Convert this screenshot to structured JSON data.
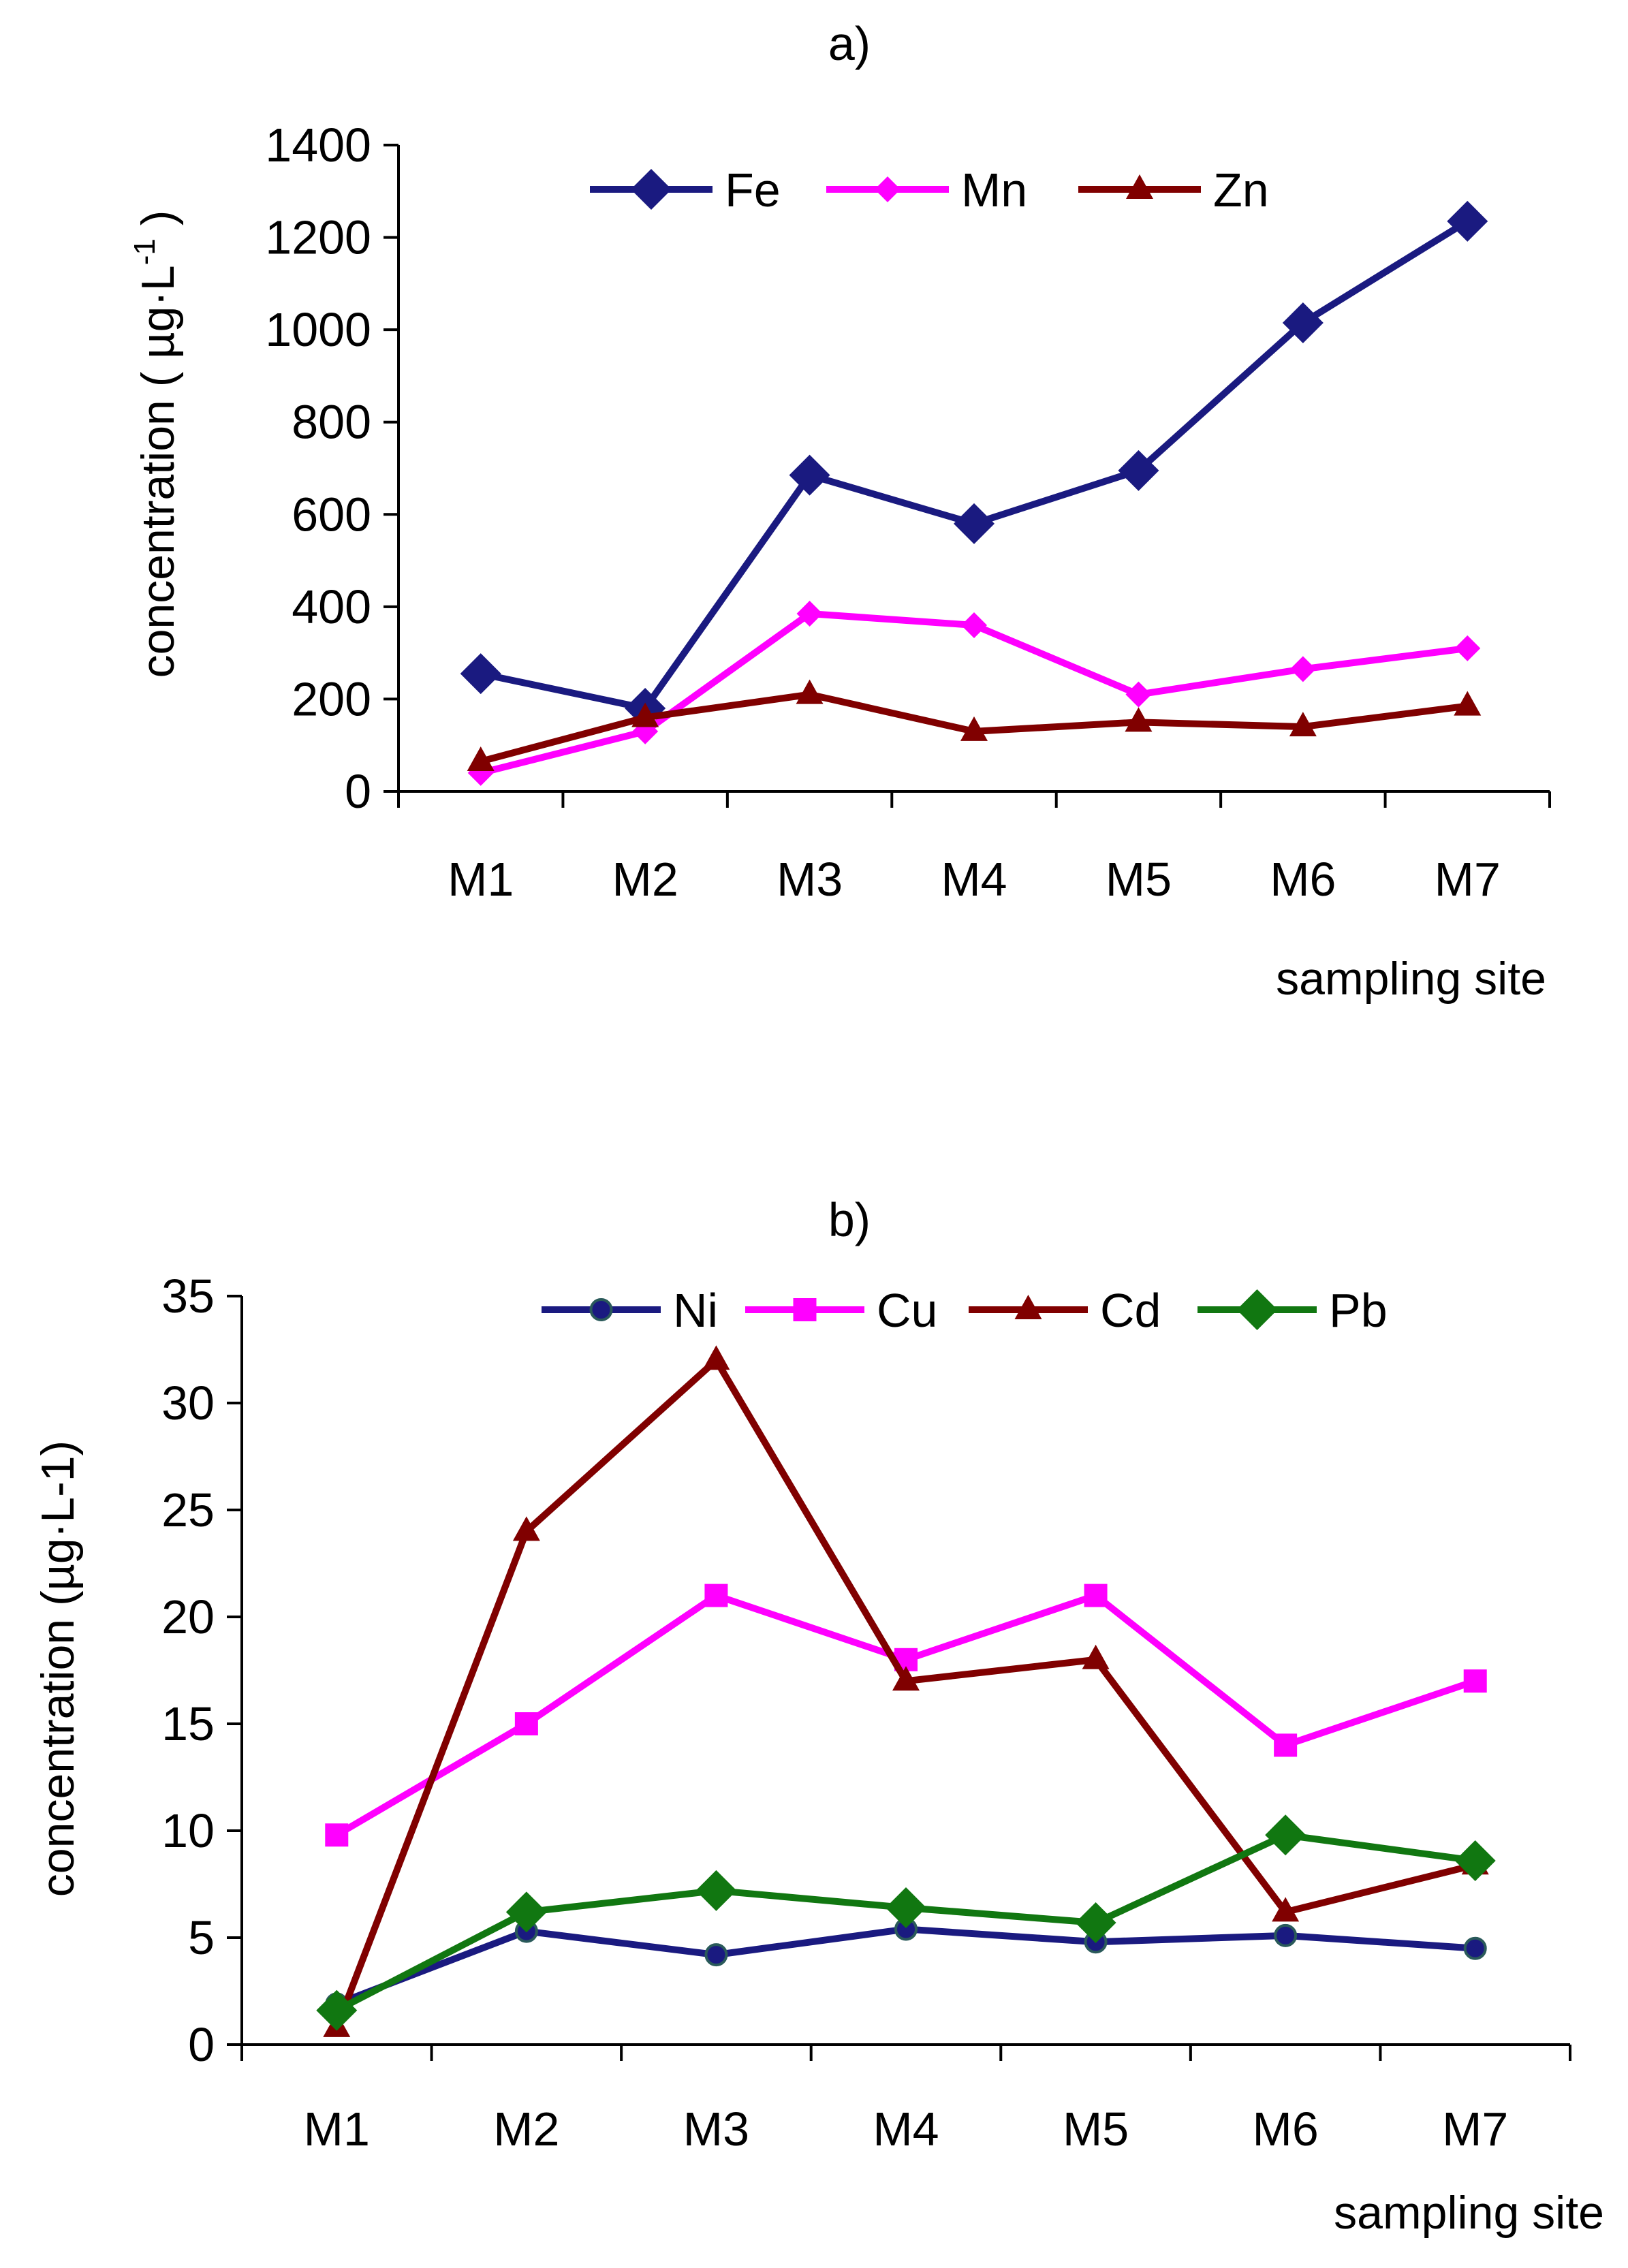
{
  "chart_data": [
    {
      "type": "line",
      "title": "a)",
      "xlabel": "sampling site",
      "ylabel": "concentration ( µg·L",
      "ylabel_sup": "-1",
      "ylabel_close": " )",
      "categories": [
        "M1",
        "M2",
        "M3",
        "M4",
        "M5",
        "M6",
        "M7"
      ],
      "ylim": [
        0,
        1400
      ],
      "yticks": [
        0,
        200,
        400,
        600,
        800,
        1000,
        1200,
        1400
      ],
      "ytick_labels": [
        "0",
        "200",
        "400",
        "600",
        "800",
        "1000",
        "1200",
        "1400"
      ],
      "grid": false,
      "legend": "top",
      "series": [
        {
          "name": "Fe",
          "color": "#1a1a80",
          "marker": "diamond",
          "values": [
            255,
            180,
            685,
            580,
            695,
            1015,
            1235
          ]
        },
        {
          "name": "Mn",
          "color": "#ff00ff",
          "marker": "diamond-small",
          "values": [
            40,
            130,
            385,
            360,
            210,
            265,
            310
          ]
        },
        {
          "name": "Zn",
          "color": "#800000",
          "marker": "triangle",
          "values": [
            65,
            160,
            210,
            130,
            150,
            140,
            185
          ]
        }
      ]
    },
    {
      "type": "line",
      "title": "b)",
      "xlabel": "sampling site",
      "ylabel": "concentration (µg·L-1)",
      "categories": [
        "M1",
        "M2",
        "M3",
        "M4",
        "M5",
        "M6",
        "M7"
      ],
      "ylim": [
        0,
        35
      ],
      "yticks": [
        0,
        5,
        10,
        15,
        20,
        25,
        30,
        35
      ],
      "ytick_labels": [
        "0",
        "5",
        "10",
        "15",
        "20",
        "25",
        "30",
        "35"
      ],
      "grid": false,
      "legend": "top",
      "series": [
        {
          "name": "Ni",
          "color": "#1a1a80",
          "marker": "circle",
          "values": [
            1.9,
            5.3,
            4.2,
            5.4,
            4.8,
            5.1,
            4.5
          ]
        },
        {
          "name": "Cu",
          "color": "#ff00ff",
          "marker": "square",
          "values": [
            9.8,
            15,
            21,
            18,
            21,
            14,
            17
          ]
        },
        {
          "name": "Cd",
          "color": "#800000",
          "marker": "triangle",
          "values": [
            0.8,
            24,
            32,
            17,
            18,
            6.2,
            8.4
          ]
        },
        {
          "name": "Pb",
          "color": "#117711",
          "marker": "diamond",
          "values": [
            1.6,
            6.2,
            7.2,
            6.4,
            5.7,
            9.8,
            8.6
          ]
        }
      ]
    }
  ]
}
